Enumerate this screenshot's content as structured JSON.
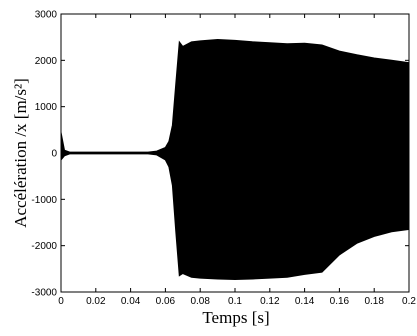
{
  "chart_data": {
    "type": "line",
    "title": "",
    "xlabel": "Temps  [s]",
    "ylabel": "Accélération /x  [m/s²]",
    "xlim": [
      0,
      0.2
    ],
    "ylim": [
      -3000,
      3000
    ],
    "x_ticks": [
      0,
      0.02,
      0.04,
      0.06,
      0.08,
      0.1,
      0.12,
      0.14,
      0.16,
      0.18,
      0.2
    ],
    "x_tick_labels": [
      "0",
      "0.02",
      "0.04",
      "0.06",
      "0.08",
      "0.1",
      "0.12",
      "0.14",
      "0.16",
      "0.18",
      "0.2"
    ],
    "y_ticks": [
      -3000,
      -2000,
      -1000,
      0,
      1000,
      2000,
      3000
    ],
    "y_tick_labels": [
      "-3000",
      "-2000",
      "-1000",
      "0",
      "1000",
      "2000",
      "3000"
    ],
    "grid": false,
    "legend": "none",
    "line_color": "#000000",
    "series": [
      {
        "upper_envelope": {
          "x": [
            0,
            0.002,
            0.005,
            0.05,
            0.055,
            0.06,
            0.062,
            0.064,
            0.066,
            0.068,
            0.07,
            0.075,
            0.08,
            0.09,
            0.1,
            0.11,
            0.12,
            0.13,
            0.14,
            0.15,
            0.16,
            0.17,
            0.18,
            0.19,
            0.2
          ],
          "y": [
            450,
            60,
            20,
            20,
            40,
            120,
            250,
            600,
            1500,
            2400,
            2300,
            2400,
            2420,
            2450,
            2430,
            2400,
            2380,
            2360,
            2370,
            2330,
            2200,
            2120,
            2050,
            2000,
            1950
          ]
        },
        "lower_envelope": {
          "x": [
            0,
            0.002,
            0.005,
            0.05,
            0.055,
            0.06,
            0.062,
            0.064,
            0.066,
            0.068,
            0.07,
            0.075,
            0.08,
            0.09,
            0.1,
            0.11,
            0.12,
            0.13,
            0.14,
            0.15,
            0.16,
            0.17,
            0.18,
            0.19,
            0.2
          ],
          "y": [
            -150,
            -60,
            -20,
            -20,
            -40,
            -150,
            -300,
            -700,
            -1700,
            -2650,
            -2600,
            -2680,
            -2700,
            -2720,
            -2730,
            -2720,
            -2700,
            -2680,
            -2620,
            -2570,
            -2200,
            -1950,
            -1800,
            -1700,
            -1650
          ]
        }
      }
    ]
  }
}
